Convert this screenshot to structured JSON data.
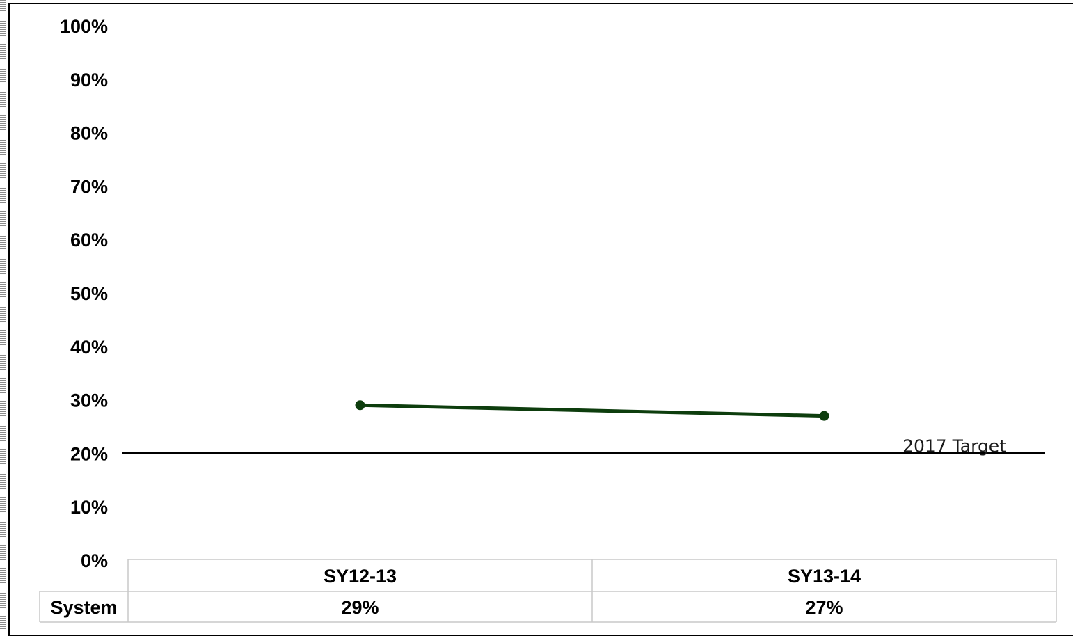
{
  "chart_data": {
    "type": "line",
    "categories": [
      "SY12-13",
      "SY13-14"
    ],
    "series": [
      {
        "name": "System",
        "values": [
          29,
          27
        ],
        "labels": [
          "29%",
          "27%"
        ],
        "color": "#0d3d0d"
      }
    ],
    "target": {
      "label": "2017 Target",
      "value": 20,
      "color": "#000000"
    },
    "y_ticks": [
      "0%",
      "10%",
      "20%",
      "30%",
      "40%",
      "50%",
      "60%",
      "70%",
      "80%",
      "90%",
      "100%"
    ],
    "ylim": [
      0,
      100
    ],
    "grid": false,
    "legend": "data table below plot"
  }
}
